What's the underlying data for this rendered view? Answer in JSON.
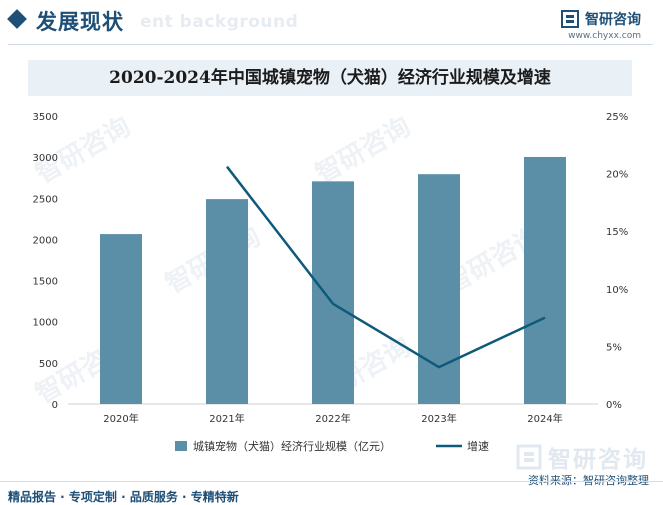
{
  "header": {
    "title": "发展现状",
    "ghost_text": "ent background",
    "brand_name": "智研咨询",
    "brand_url": "www.chyxx.com"
  },
  "colors": {
    "brand": "#1e4f77",
    "bar": "#5b8fa8",
    "line": "#0e5a7a"
  },
  "watermark_text": "智研咨询",
  "chart_data": {
    "type": "bar",
    "title": "2020-2024年中国城镇宠物（犬猫）经济行业规模及增速",
    "categories": [
      "2020年",
      "2021年",
      "2022年",
      "2023年",
      "2024年"
    ],
    "series": [
      {
        "name": "城镇宠物（犬猫）经济行业规模（亿元）",
        "type": "bar",
        "axis": "left",
        "values": [
          2065,
          2490,
          2706,
          2793,
          3002
        ]
      },
      {
        "name": "增速",
        "type": "line",
        "axis": "right",
        "values": [
          null,
          20.6,
          8.7,
          3.2,
          7.5
        ]
      }
    ],
    "y_left": {
      "min": 0,
      "max": 3500,
      "ticks": [
        "0",
        "500",
        "1000",
        "1500",
        "2000",
        "2500",
        "3000",
        "3500"
      ]
    },
    "y_right": {
      "min": 0,
      "max": 25,
      "ticks": [
        "0%",
        "5%",
        "10%",
        "15%",
        "20%",
        "25%"
      ]
    },
    "grid": false,
    "legend_position": "bottom"
  },
  "footer": {
    "services": "精品报告 · 专项定制 · 品质服务 · 专精特新",
    "source": "资料来源：智研咨询整理",
    "brand_big": "智研咨询"
  }
}
